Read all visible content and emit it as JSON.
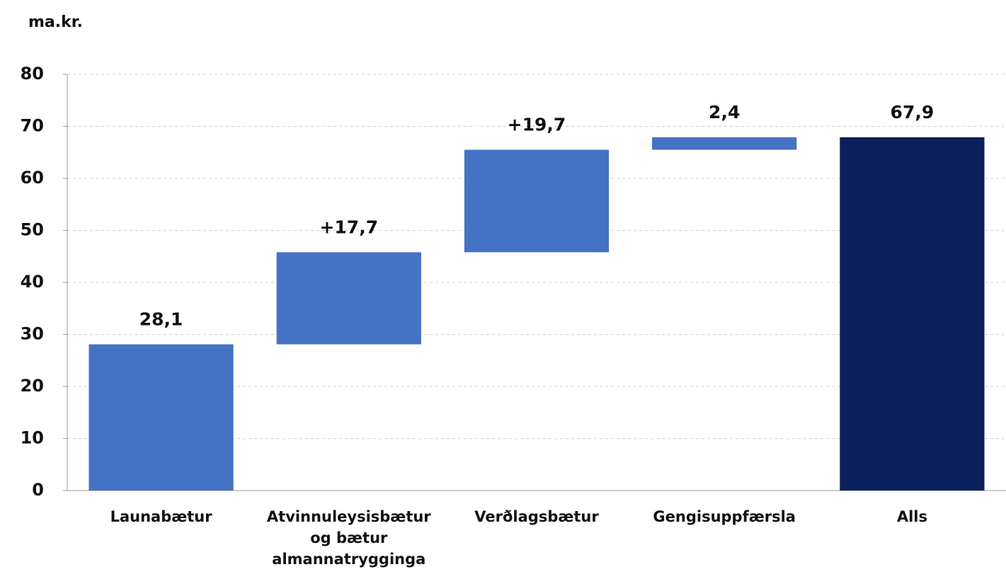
{
  "chart_data": {
    "type": "waterfall",
    "y_axis_label": "ma.kr.",
    "categories": [
      "Launabætur",
      "Atvinnuleysisbætur og bætur almannatrygginga",
      "Verðlagsbætur",
      "Gengisuppfærsla",
      "Alls"
    ],
    "values": [
      28.1,
      17.7,
      19.7,
      2.4,
      67.9
    ],
    "value_labels": [
      "28,1",
      "+17,7",
      "+19,7",
      "2,4",
      "67,9"
    ],
    "colors": [
      "#4472c4",
      "#4472c4",
      "#4472c4",
      "#4472c4",
      "#0b1f5c"
    ],
    "ylim": [
      0,
      80
    ],
    "yticks": [
      0,
      10,
      20,
      30,
      40,
      50,
      60,
      70,
      80
    ],
    "grid": true
  }
}
